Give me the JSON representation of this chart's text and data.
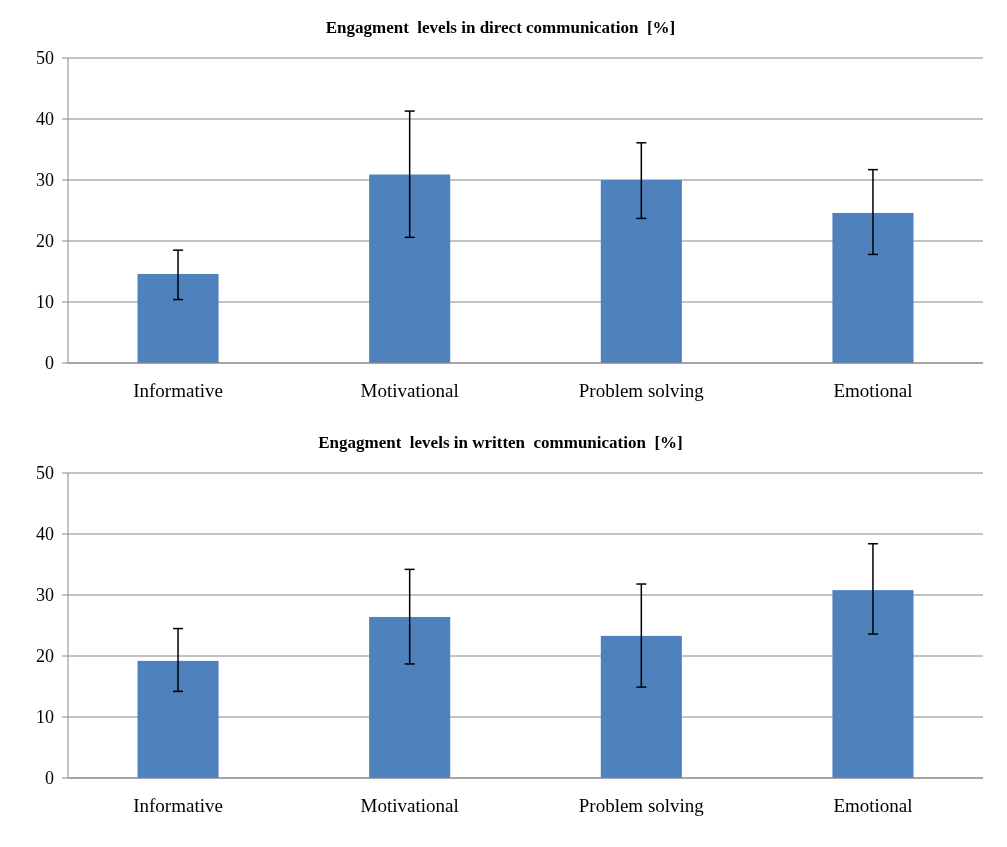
{
  "chart_data": [
    {
      "type": "bar",
      "title": "Engagment  levels in direct communication  [%]",
      "categories": [
        "Informative",
        "Motivational",
        "Problem solving",
        "Emotional"
      ],
      "values": [
        14.6,
        30.9,
        30.0,
        24.6
      ],
      "errors": [
        [
          10.4,
          18.5
        ],
        [
          20.6,
          41.3
        ],
        [
          23.7,
          36.1
        ],
        [
          17.8,
          31.7
        ]
      ],
      "color": "#4f81bd",
      "ylim": [
        0,
        50
      ],
      "yticks": [
        0,
        10,
        20,
        30,
        40,
        50
      ],
      "grid": "y"
    },
    {
      "type": "bar",
      "title": "Engagment  levels in written  communication  [%]",
      "categories": [
        "Informative",
        "Motivational",
        "Problem solving",
        "Emotional"
      ],
      "values": [
        19.2,
        26.4,
        23.3,
        30.8
      ],
      "errors": [
        [
          14.2,
          24.5
        ],
        [
          18.7,
          34.2
        ],
        [
          14.9,
          31.8
        ],
        [
          23.6,
          38.4
        ]
      ],
      "color": "#4f81bd",
      "ylim": [
        0,
        50
      ],
      "yticks": [
        0,
        10,
        20,
        30,
        40,
        50
      ],
      "grid": "y"
    }
  ]
}
